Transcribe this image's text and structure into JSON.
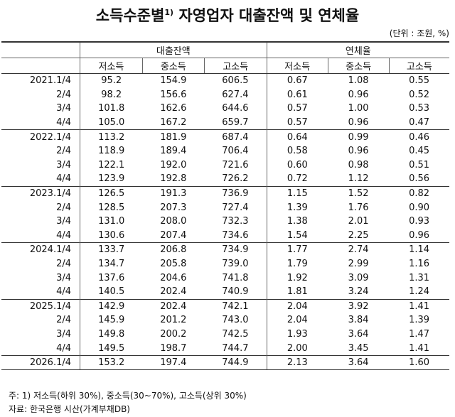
{
  "title": {
    "text": "소득수준별",
    "sup": "1)",
    "rest": "자영업자 대출잔액 및 연체율"
  },
  "unit": "(단위 : 조원, %)",
  "table": {
    "groups": [
      "대출잔액",
      "연체율"
    ],
    "columns": [
      "저소득",
      "중소득",
      "고소득",
      "저소득",
      "중소득",
      "고소득"
    ],
    "rows": [
      [
        "2021.1/4",
        "95.2",
        "154.9",
        "606.5",
        "0.67",
        "1.08",
        "0.55"
      ],
      [
        "2/4",
        "98.2",
        "156.6",
        "627.4",
        "0.61",
        "0.96",
        "0.52"
      ],
      [
        "3/4",
        "101.8",
        "162.6",
        "644.6",
        "0.57",
        "1.00",
        "0.53"
      ],
      [
        "4/4",
        "105.0",
        "167.2",
        "659.7",
        "0.57",
        "0.96",
        "0.47"
      ],
      [
        "2022.1/4",
        "113.2",
        "181.9",
        "687.4",
        "0.64",
        "0.99",
        "0.46"
      ],
      [
        "2/4",
        "118.9",
        "189.4",
        "706.4",
        "0.58",
        "0.96",
        "0.45"
      ],
      [
        "3/4",
        "122.1",
        "192.0",
        "721.6",
        "0.60",
        "0.98",
        "0.51"
      ],
      [
        "4/4",
        "123.9",
        "192.8",
        "726.2",
        "0.72",
        "1.12",
        "0.56"
      ],
      [
        "2023.1/4",
        "126.5",
        "191.3",
        "736.9",
        "1.15",
        "1.52",
        "0.82"
      ],
      [
        "2/4",
        "128.5",
        "207.3",
        "727.4",
        "1.39",
        "1.76",
        "0.90"
      ],
      [
        "3/4",
        "131.0",
        "208.0",
        "732.3",
        "1.38",
        "2.01",
        "0.93"
      ],
      [
        "4/4",
        "130.6",
        "207.4",
        "734.6",
        "1.54",
        "2.25",
        "0.96"
      ],
      [
        "2024.1/4",
        "133.7",
        "206.8",
        "734.9",
        "1.77",
        "2.74",
        "1.14"
      ],
      [
        "2/4",
        "134.7",
        "205.8",
        "739.0",
        "1.79",
        "2.99",
        "1.16"
      ],
      [
        "3/4",
        "137.6",
        "204.6",
        "741.8",
        "1.92",
        "3.09",
        "1.31"
      ],
      [
        "4/4",
        "140.5",
        "202.4",
        "740.9",
        "1.81",
        "3.24",
        "1.24"
      ],
      [
        "2025.1/4",
        "142.9",
        "202.4",
        "742.1",
        "2.04",
        "3.92",
        "1.41"
      ],
      [
        "2/4",
        "145.9",
        "201.2",
        "743.0",
        "2.04",
        "3.84",
        "1.39"
      ],
      [
        "3/4",
        "149.8",
        "200.2",
        "742.5",
        "1.93",
        "3.64",
        "1.47"
      ],
      [
        "4/4",
        "149.5",
        "198.7",
        "744.7",
        "2.00",
        "3.45",
        "1.41"
      ],
      [
        "2026.1/4",
        "153.2",
        "197.4",
        "744.9",
        "2.13",
        "3.64",
        "1.60"
      ]
    ]
  },
  "notes": [
    "주: 1) 저소득(하위 30%), 중소득(30~70%), 고소득(상위 30%)",
    "자료: 한국은행 시산(가계부채DB)"
  ]
}
